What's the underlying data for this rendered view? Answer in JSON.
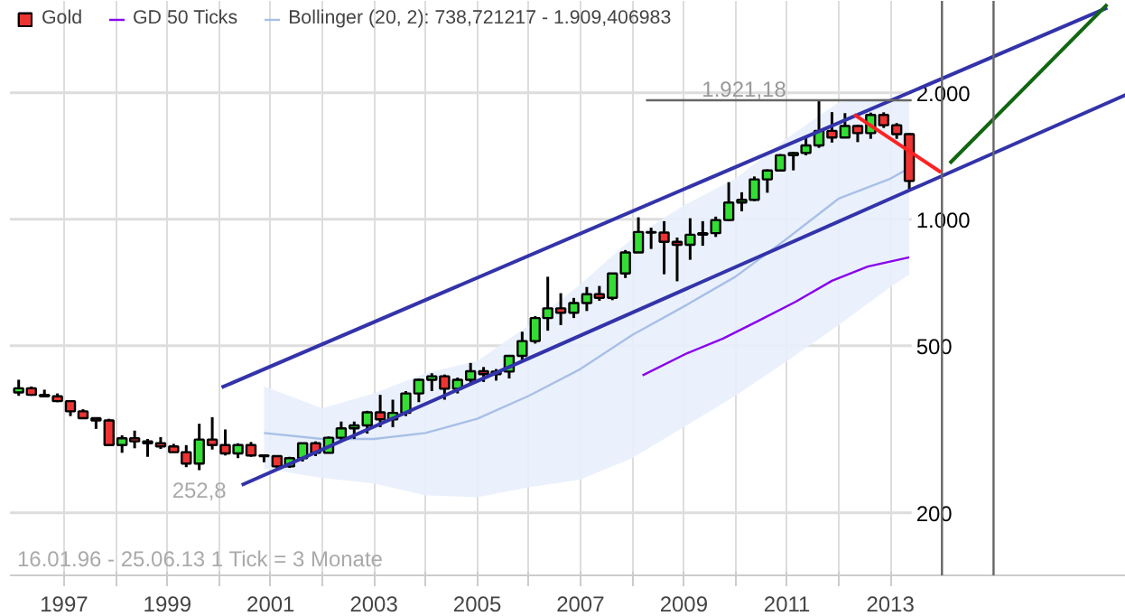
{
  "chart_data": {
    "type": "candlestick",
    "xlim": [
      "1995-12-15",
      "2017-07-25"
    ],
    "ylim": [
      142,
      3312
    ],
    "log": true,
    "grid": true,
    "legend": "top left",
    "xticks": [
      {
        "value": "1997",
        "label": "1997"
      },
      {
        "value": "1998",
        "label": null
      },
      {
        "value": "1999",
        "label": "1999"
      },
      {
        "value": "2000",
        "label": null
      },
      {
        "value": "2001",
        "label": "2001"
      },
      {
        "value": "2002",
        "label": null
      },
      {
        "value": "2003",
        "label": "2003"
      },
      {
        "value": "2004",
        "label": null
      },
      {
        "value": "2005",
        "label": "2005"
      },
      {
        "value": "2006",
        "label": null
      },
      {
        "value": "2007",
        "label": "2007"
      },
      {
        "value": "2008",
        "label": null
      },
      {
        "value": "2009",
        "label": "2009"
      },
      {
        "value": "2010",
        "label": null
      },
      {
        "value": "2011",
        "label": "2011"
      },
      {
        "value": "2012",
        "label": null
      },
      {
        "value": "2013",
        "label": "2013"
      }
    ],
    "yticks": [
      200,
      500,
      {
        "value": 1000,
        "label": "1.000"
      },
      {
        "value": 2000,
        "label": "2.000"
      }
    ],
    "ref_lines": [
      {
        "axis": "y",
        "value": 1921.18,
        "label": "1.921,18",
        "color": "#666666"
      },
      {
        "axis": "x",
        "value": "2014-01-01",
        "label": null,
        "color": "#666666"
      },
      {
        "axis": "x",
        "value": "2015-01-01",
        "label": null,
        "color": "#666666"
      }
    ],
    "annotations": [
      {
        "text": "252,8",
        "x": "1999-08-15",
        "y": 252.8
      },
      "16.01.96 - 25.06.13   1 Tick = 3 Monate"
    ],
    "series": [
      {
        "name": "Gold",
        "color": "#ee3333",
        "x": [
          "1996-02-15",
          "1996-05-15",
          "1996-08-15",
          "1996-11-15",
          "1997-02-15",
          "1997-05-15",
          "1997-08-15",
          "1997-11-15",
          "1998-02-15",
          "1998-05-15",
          "1998-08-15",
          "1998-11-15",
          "1999-02-15",
          "1999-05-15",
          "1999-08-15",
          "1999-11-15",
          "2000-02-15",
          "2000-05-15",
          "2000-08-15",
          "2000-11-15",
          "2001-02-15",
          "2001-05-15",
          "2001-08-15",
          "2001-11-15",
          "2002-02-15",
          "2002-05-15",
          "2002-08-15",
          "2002-11-15",
          "2003-02-15",
          "2003-05-15",
          "2003-08-15",
          "2003-11-15",
          "2004-02-15",
          "2004-05-15",
          "2004-08-15",
          "2004-11-15",
          "2005-02-15",
          "2005-05-15",
          "2005-08-15",
          "2005-11-15",
          "2006-02-15",
          "2006-05-15",
          "2006-08-15",
          "2006-11-15",
          "2007-02-15",
          "2007-05-15",
          "2007-08-15",
          "2007-11-15",
          "2008-02-15",
          "2008-05-15",
          "2008-08-15",
          "2008-11-15",
          "2009-02-15",
          "2009-05-15",
          "2009-08-15",
          "2009-11-15",
          "2010-02-15",
          "2010-05-15",
          "2010-08-15",
          "2010-11-15",
          "2011-02-15",
          "2011-05-15",
          "2011-08-15",
          "2011-11-15",
          "2012-02-15",
          "2012-05-15",
          "2012-08-15",
          "2012-11-15",
          "2013-02-15",
          "2013-05-15"
        ],
        "ohlc": [
          [
            387,
            415,
            380,
            396
          ],
          [
            396,
            400,
            380,
            382
          ],
          [
            382,
            393,
            378,
            379
          ],
          [
            379,
            385,
            367,
            369
          ],
          [
            369,
            369,
            340,
            349
          ],
          [
            349,
            353,
            336,
            336
          ],
          [
            336,
            337,
            317,
            332
          ],
          [
            332,
            335,
            289,
            290
          ],
          [
            290,
            306,
            278,
            301
          ],
          [
            301,
            314,
            285,
            296
          ],
          [
            296,
            300,
            272,
            293
          ],
          [
            293,
            303,
            284,
            288
          ],
          [
            288,
            292,
            279,
            279
          ],
          [
            279,
            290,
            257,
            262
          ],
          [
            262,
            326,
            252.8,
            299
          ],
          [
            299,
            338,
            283,
            290
          ],
          [
            290,
            316,
            274,
            277
          ],
          [
            277,
            293,
            270,
            290
          ],
          [
            290,
            295,
            272,
            274
          ],
          [
            274,
            275,
            264,
            273
          ],
          [
            273,
            274,
            255,
            258
          ],
          [
            258,
            272,
            256,
            270
          ],
          [
            270,
            294,
            265,
            293
          ],
          [
            293,
            296,
            273,
            278
          ],
          [
            278,
            304,
            277,
            302
          ],
          [
            302,
            330,
            296,
            318
          ],
          [
            318,
            330,
            300,
            323
          ],
          [
            323,
            350,
            309,
            347
          ],
          [
            347,
            382,
            320,
            334
          ],
          [
            334,
            372,
            320,
            346
          ],
          [
            346,
            390,
            340,
            385
          ],
          [
            385,
            418,
            367,
            415
          ],
          [
            415,
            430,
            390,
            423
          ],
          [
            423,
            427,
            372,
            395
          ],
          [
            395,
            420,
            385,
            415
          ],
          [
            415,
            455,
            408,
            435
          ],
          [
            435,
            445,
            410,
            428
          ],
          [
            428,
            440,
            413,
            434
          ],
          [
            434,
            474,
            418,
            473
          ],
          [
            473,
            540,
            458,
            513
          ],
          [
            513,
            588,
            506,
            582
          ],
          [
            582,
            730,
            543,
            614
          ],
          [
            614,
            667,
            560,
            599
          ],
          [
            599,
            650,
            582,
            632
          ],
          [
            632,
            690,
            605,
            663
          ],
          [
            663,
            694,
            640,
            650
          ],
          [
            650,
            745,
            642,
            743
          ],
          [
            743,
            845,
            725,
            834
          ],
          [
            834,
            1011,
            832,
            933
          ],
          [
            933,
            955,
            850,
            930
          ],
          [
            930,
            990,
            740,
            884
          ],
          [
            884,
            905,
            712,
            870
          ],
          [
            870,
            1006,
            801,
            919
          ],
          [
            919,
            990,
            865,
            927
          ],
          [
            927,
            1015,
            908,
            996
          ],
          [
            996,
            1226,
            990,
            1096
          ],
          [
            1096,
            1160,
            1045,
            1113
          ],
          [
            1113,
            1265,
            1105,
            1245
          ],
          [
            1245,
            1315,
            1157,
            1307
          ],
          [
            1307,
            1430,
            1305,
            1421
          ],
          [
            1421,
            1447,
            1308,
            1439
          ],
          [
            1439,
            1577,
            1420,
            1500
          ],
          [
            1500,
            1921.18,
            1480,
            1624
          ],
          [
            1624,
            1800,
            1523,
            1566
          ],
          [
            1566,
            1790,
            1560,
            1668
          ],
          [
            1668,
            1680,
            1527,
            1604
          ],
          [
            1604,
            1795,
            1555,
            1772
          ],
          [
            1772,
            1798,
            1650,
            1675
          ],
          [
            1675,
            1695,
            1555,
            1595
          ],
          [
            1595,
            1605,
            1180,
            1234
          ]
        ],
        "colors": [
          "#33dd33",
          "#ee3333",
          "#ee3333",
          "#ee3333",
          "#ee3333",
          "#ee3333",
          "#ee3333",
          "#ee3333",
          "#33dd33",
          "#ee3333",
          "#ee3333",
          "#ee3333",
          "#ee3333",
          "#ee3333",
          "#33dd33",
          "#ee3333",
          "#ee3333",
          "#33dd33",
          "#ee3333",
          "#ee3333",
          "#ee3333",
          "#33dd33",
          "#33dd33",
          "#ee3333",
          "#33dd33",
          "#33dd33",
          "#33dd33",
          "#33dd33",
          "#ee3333",
          "#33dd33",
          "#33dd33",
          "#33dd33",
          "#33dd33",
          "#ee3333",
          "#33dd33",
          "#33dd33",
          "#ee3333",
          "#33dd33",
          "#33dd33",
          "#33dd33",
          "#33dd33",
          "#33dd33",
          "#ee3333",
          "#33dd33",
          "#33dd33",
          "#ee3333",
          "#33dd33",
          "#33dd33",
          "#33dd33",
          "#ee3333",
          "#ee3333",
          "#ee3333",
          "#33dd33",
          "#33dd33",
          "#33dd33",
          "#33dd33",
          "#33dd33",
          "#33dd33",
          "#33dd33",
          "#33dd33",
          "#33dd33",
          "#33dd33",
          "#33dd33",
          "#ee3333",
          "#33dd33",
          "#ee3333",
          "#33dd33",
          "#ee3333",
          "#ee3333",
          "#ee3333"
        ]
      },
      {
        "name": "GD 50 Ticks",
        "type": "line",
        "color": "#8800ee",
        "x": [
          "2008-03-15",
          "2009-01-25",
          "2009-10-05",
          "2010-06-20",
          "2011-03-01",
          "2011-11-15",
          "2012-07-25",
          "2013-05-15"
        ],
        "values": [
          425,
          480,
          520,
          575,
          636,
          714,
          772,
          812
        ]
      },
      {
        "name": "Bollinger (20, 2): 738,721217 - 1.909,406983",
        "type": "line",
        "color": "#a8bfe8",
        "x": [
          "2000-11-15",
          "2002-01-01",
          "2003-01-01",
          "2004-01-01",
          "2005-01-01",
          "2006-01-01",
          "2007-01-01",
          "2008-01-01",
          "2009-01-01",
          "2010-01-01",
          "2011-01-01",
          "2012-01-01",
          "2013-01-01",
          "2013-05-15"
        ],
        "values": [
          310,
          300,
          300,
          310,
          335,
          380,
          440,
          530,
          620,
          730,
          900,
          1120,
          1250,
          1324
        ],
        "lower": [
          255,
          242,
          235,
          220,
          218,
          230,
          240,
          270,
          320,
          380,
          460,
          560,
          690,
          738.7
        ],
        "upper": [
          400,
          355,
          385,
          430,
          460,
          560,
          700,
          900,
          1080,
          1250,
          1560,
          1900,
          1950,
          1909.4
        ]
      },
      {
        "type": "line",
        "color": "#3333aa",
        "x": [
          "2000-01-20",
          "2017-03-15"
        ],
        "values": [
          398,
          3190
        ]
      },
      {
        "type": "line",
        "color": "#3333aa",
        "x": [
          "2000-06-10",
          "2017-07-25"
        ],
        "values": [
          233,
          1980
        ]
      },
      {
        "type": "line",
        "color": "#ff2222",
        "x": [
          "2012-04-20",
          "2013-12-25"
        ],
        "values": [
          1776,
          1294
        ]
      },
      {
        "type": "line",
        "color": "#116611",
        "x": [
          "2014-02-25",
          "2017-03-15"
        ],
        "values": [
          1360,
          3249
        ]
      }
    ]
  }
}
